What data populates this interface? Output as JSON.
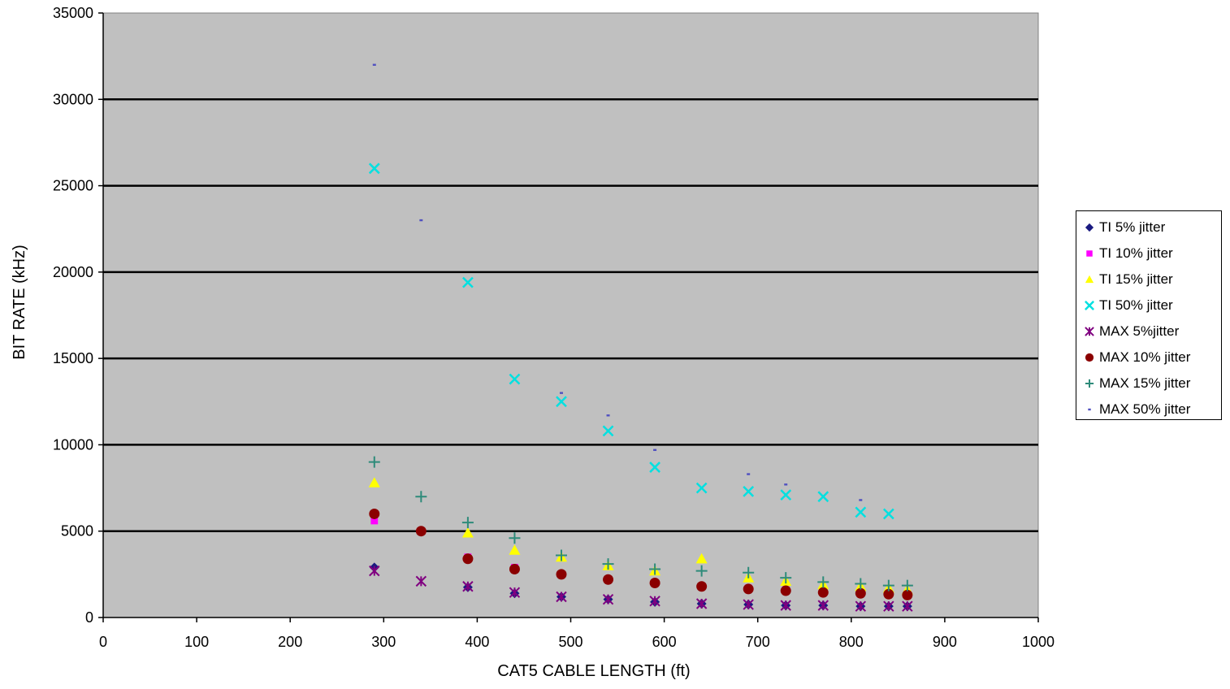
{
  "chart_data": {
    "type": "scatter",
    "title": "",
    "xlabel": "CAT5 CABLE LENGTH (ft)",
    "ylabel": "BIT RATE (kHz)",
    "xlim": [
      0,
      1000
    ],
    "ylim": [
      0,
      35000
    ],
    "x_ticks": [
      "0",
      "100",
      "200",
      "300",
      "400",
      "500",
      "600",
      "700",
      "800",
      "900",
      "1000"
    ],
    "y_ticks": [
      "0",
      "5000",
      "10000",
      "15000",
      "20000",
      "25000",
      "30000",
      "35000"
    ],
    "grid": "horizontal",
    "legend_position": "right",
    "plot_background": "#c0c0c0",
    "series": [
      {
        "name": "TI 5% jitter",
        "marker": "diamond",
        "color": "#1a1a80",
        "x": [
          290,
          390,
          440,
          490,
          540,
          590,
          640,
          690,
          730,
          770,
          810,
          840,
          860
        ],
        "y": [
          2900,
          1750,
          1400,
          1200,
          1050,
          900,
          800,
          750,
          700,
          700,
          650,
          650,
          650
        ]
      },
      {
        "name": "TI 10% jitter",
        "marker": "square",
        "color": "#ff00ff",
        "x": [
          290,
          340,
          390,
          440,
          490,
          540,
          590,
          640,
          690,
          730,
          770,
          810,
          840,
          860
        ],
        "y": [
          5600,
          5000,
          3500,
          2900,
          2500,
          2200,
          2000,
          1800,
          1700,
          1600,
          1500,
          1400,
          1400,
          1350
        ]
      },
      {
        "name": "TI 15% jitter",
        "marker": "triangle",
        "color": "#ffff00",
        "x": [
          290,
          390,
          440,
          490,
          540,
          590,
          640,
          690,
          730,
          770,
          810,
          840,
          860
        ],
        "y": [
          7800,
          4900,
          3900,
          3500,
          3000,
          2700,
          3400,
          2300,
          2100,
          1900,
          1800,
          1700,
          1600
        ]
      },
      {
        "name": "TI 50% jitter",
        "marker": "x",
        "color": "#00e0e0",
        "x": [
          290,
          390,
          440,
          490,
          540,
          590,
          640,
          690,
          730,
          770,
          810,
          840
        ],
        "y": [
          26000,
          19400,
          13800,
          12500,
          10800,
          8700,
          7500,
          7300,
          7100,
          7000,
          6100,
          6000
        ]
      },
      {
        "name": "MAX 5%jitter",
        "marker": "star",
        "color": "#800080",
        "x": [
          290,
          340,
          390,
          440,
          490,
          540,
          590,
          640,
          690,
          730,
          770,
          810,
          840,
          860
        ],
        "y": [
          2700,
          2100,
          1800,
          1450,
          1200,
          1050,
          950,
          800,
          750,
          700,
          700,
          650,
          650,
          650
        ]
      },
      {
        "name": "MAX 10% jitter",
        "marker": "circle",
        "color": "#8b0000",
        "x": [
          290,
          340,
          390,
          440,
          490,
          540,
          590,
          640,
          690,
          730,
          770,
          810,
          840,
          860
        ],
        "y": [
          6000,
          5000,
          3400,
          2800,
          2500,
          2200,
          2000,
          1800,
          1650,
          1550,
          1450,
          1400,
          1350,
          1300
        ]
      },
      {
        "name": "MAX 15% jitter",
        "marker": "plus",
        "color": "#2e8b7a",
        "x": [
          290,
          340,
          390,
          440,
          490,
          540,
          590,
          640,
          690,
          730,
          770,
          810,
          840,
          860
        ],
        "y": [
          9000,
          7000,
          5500,
          4600,
          3600,
          3100,
          2800,
          2700,
          2600,
          2300,
          2050,
          1950,
          1850,
          1850
        ]
      },
      {
        "name": "MAX 50% jitter",
        "marker": "dash",
        "color": "#5050c0",
        "x": [
          290,
          340,
          490,
          540,
          590,
          690,
          730,
          810
        ],
        "y": [
          32000,
          23000,
          13000,
          11700,
          9700,
          8300,
          7700,
          6800
        ]
      }
    ]
  }
}
